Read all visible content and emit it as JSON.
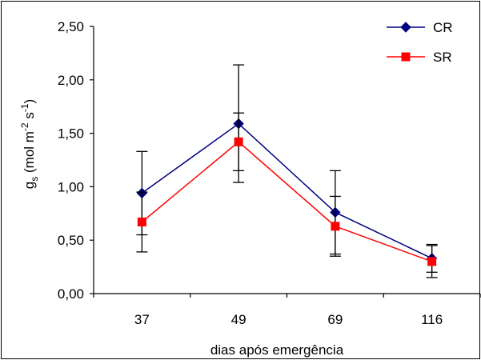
{
  "chart_data": {
    "type": "line",
    "categories": [
      "37",
      "49",
      "69",
      "116"
    ],
    "xlabel": "dias após emergência",
    "ylabel": {
      "symbol": "g",
      "symbol_sub": "s",
      "unit_prefix": " (mol m",
      "unit_sup1": "-2",
      "unit_mid": " s",
      "unit_sup2": "-1",
      "unit_suffix": ")"
    },
    "ylim": [
      0,
      2.5
    ],
    "yticks": [
      "0,00",
      "0,50",
      "1,00",
      "1,50",
      "2,00",
      "2,50"
    ],
    "ytick_values": [
      0,
      0.5,
      1.0,
      1.5,
      2.0,
      2.5
    ],
    "grid": false,
    "legend_position": "top-right",
    "series": [
      {
        "name": "CR",
        "color": "#000080",
        "marker": "diamond",
        "values": [
          0.94,
          1.59,
          0.76,
          0.33
        ],
        "errors": [
          0.39,
          0.55,
          0.39,
          0.13
        ]
      },
      {
        "name": "SR",
        "color": "#ff0000",
        "marker": "square",
        "values": [
          0.67,
          1.42,
          0.63,
          0.3
        ],
        "errors": [
          0.28,
          0.27,
          0.28,
          0.15
        ]
      }
    ]
  }
}
